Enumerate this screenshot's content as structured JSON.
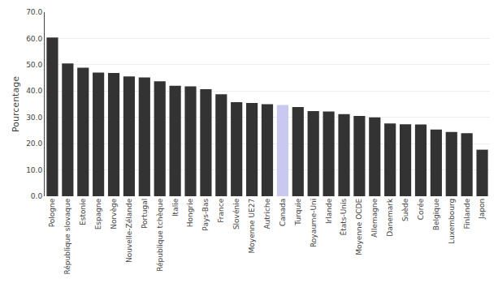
{
  "chart_data": {
    "type": "bar",
    "categories": [
      "Pologne",
      "République slovaque",
      "Estonie",
      "Espagne",
      "Norvège",
      "Nouvelle-Zélande",
      "Portugal",
      "République tchèque",
      "Italie",
      "Hongrie",
      "Pays-Bas",
      "France",
      "Slovénie",
      "Moyenne UE27",
      "Autriche",
      "Canada",
      "Turquie",
      "Royaume-Uni",
      "Irlande",
      "États-Unis",
      "Moyenne OCDE",
      "Allemagne",
      "Danemark",
      "Suède",
      "Corée",
      "Belgique",
      "Luxembourg",
      "Finlande",
      "Japon"
    ],
    "values": [
      60.4,
      50.5,
      48.9,
      47.0,
      46.9,
      45.6,
      45.2,
      43.7,
      42.0,
      41.8,
      40.7,
      38.8,
      35.8,
      35.5,
      35.0,
      34.7,
      33.9,
      32.4,
      32.2,
      31.2,
      30.5,
      30.0,
      27.7,
      27.4,
      27.3,
      25.4,
      24.4,
      24.0,
      17.7
    ],
    "colors": [
      "#333333",
      "#333333",
      "#333333",
      "#333333",
      "#333333",
      "#333333",
      "#333333",
      "#333333",
      "#333333",
      "#333333",
      "#333333",
      "#333333",
      "#333333",
      "#333333",
      "#333333",
      "#c8c8f0",
      "#333333",
      "#333333",
      "#333333",
      "#333333",
      "#333333",
      "#333333",
      "#333333",
      "#333333",
      "#333333",
      "#333333",
      "#333333",
      "#333333",
      "#333333"
    ],
    "ylabel": "Pourcentage",
    "ylim": [
      0,
      70
    ],
    "yticks": [
      {
        "value": 0,
        "label": "0.0"
      },
      {
        "value": 10,
        "label": "10.0"
      },
      {
        "value": 20,
        "label": "20.0"
      },
      {
        "value": 30,
        "label": "30.0"
      },
      {
        "value": 40,
        "label": "40.0"
      },
      {
        "value": 50,
        "label": "50.0"
      },
      {
        "value": 60,
        "label": "60.0"
      },
      {
        "value": 70,
        "label": "70.0"
      }
    ],
    "grid": true
  }
}
